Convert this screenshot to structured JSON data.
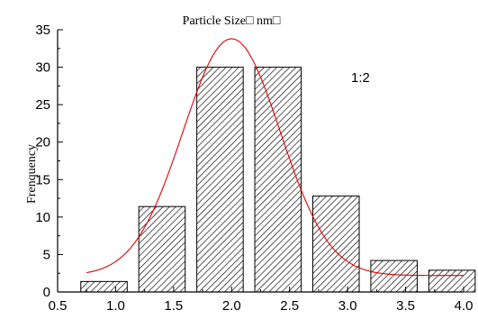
{
  "chart_data": {
    "type": "bar",
    "title": "Particle Size□ nm□",
    "xlabel": "",
    "ylabel": "Frenquency",
    "annotation": "1:2",
    "xlim": [
      0.5,
      4.0
    ],
    "ylim": [
      0,
      35
    ],
    "x_ticks": [
      "0.5",
      "1.0",
      "1.5",
      "2.0",
      "2.5",
      "3.0",
      "3.5",
      "4.0"
    ],
    "y_ticks": [
      "0",
      "5",
      "10",
      "15",
      "20",
      "25",
      "30",
      "35"
    ],
    "bins": [
      {
        "start": 0.7,
        "end": 1.1,
        "value": 1.4
      },
      {
        "start": 1.2,
        "end": 1.6,
        "value": 11.4
      },
      {
        "start": 1.7,
        "end": 2.1,
        "value": 30
      },
      {
        "start": 2.2,
        "end": 2.6,
        "value": 30
      },
      {
        "start": 2.7,
        "end": 3.1,
        "value": 12.8
      },
      {
        "start": 3.2,
        "end": 3.6,
        "value": 4.2
      },
      {
        "start": 3.7,
        "end": 4.1,
        "value": 2.9
      }
    ],
    "fit_curve": {
      "type": "gaussian",
      "color": "#e00000",
      "x_range": [
        0.75,
        4.0
      ],
      "baseline": 2.2,
      "peak": 33.8,
      "center": 2.0,
      "sigma": 0.42
    },
    "bar_fill": "diagonal-hatch",
    "grid": false,
    "legend": "none"
  }
}
